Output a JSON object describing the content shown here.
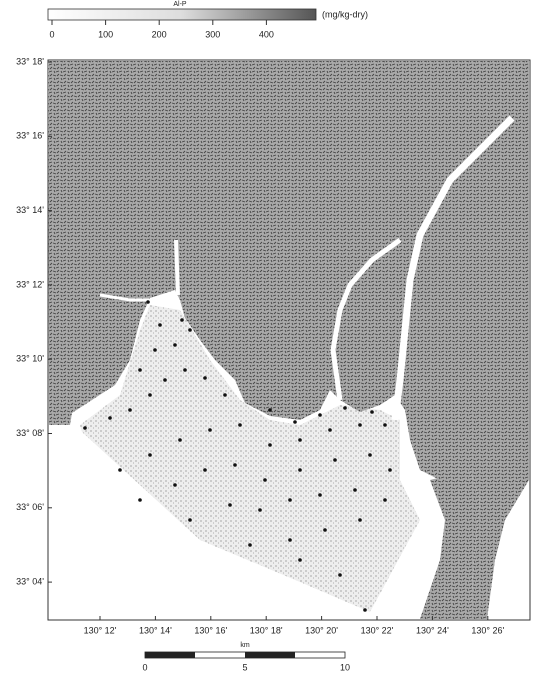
{
  "legend": {
    "title": "Al-P",
    "unit": "(mg/kg-dry)",
    "ticks": [
      0,
      100,
      200,
      300,
      400
    ]
  },
  "lat_labels": [
    "33° 18'",
    "33° 16'",
    "33° 14'",
    "33° 12'",
    "33° 10'",
    "33° 08'",
    "33° 06'",
    "33° 04'"
  ],
  "lon_labels": [
    "130° 12'",
    "130° 14'",
    "130° 16'",
    "130° 18'",
    "130° 20'",
    "130° 22'",
    "130° 24'",
    "130° 26'"
  ],
  "scale_bar": {
    "unit": "km",
    "ticks": [
      0,
      5,
      10
    ]
  }
}
